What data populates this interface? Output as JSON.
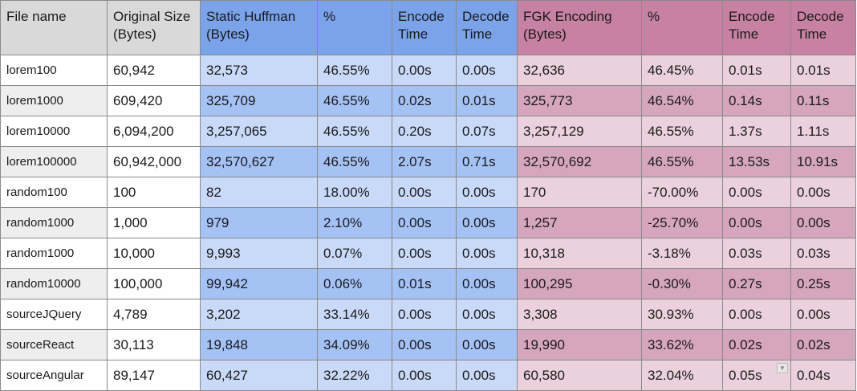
{
  "headers": {
    "file_name": "File name",
    "original_size": "Original Size (Bytes)",
    "static_huffman": "Static Huffman (Bytes)",
    "static_pct": "%",
    "static_encode": "Encode Time",
    "static_decode": "Decode Time",
    "fgk": "FGK Encoding (Bytes)",
    "fgk_pct": "%",
    "fgk_encode": "Encode Time",
    "fgk_decode": "Decode Time"
  },
  "rows": [
    {
      "name": "lorem100",
      "orig": "60,942",
      "sh": "32,573",
      "sh_pct": "46.55%",
      "sh_enc": "0.00s",
      "sh_dec": "0.00s",
      "fgk": "32,636",
      "fgk_pct": "46.45%",
      "fgk_enc": "0.01s",
      "fgk_dec": "0.01s"
    },
    {
      "name": "lorem1000",
      "orig": "609,420",
      "sh": "325,709",
      "sh_pct": "46.55%",
      "sh_enc": "0.02s",
      "sh_dec": "0.01s",
      "fgk": "325,773",
      "fgk_pct": "46.54%",
      "fgk_enc": "0.14s",
      "fgk_dec": "0.11s"
    },
    {
      "name": "lorem10000",
      "orig": "6,094,200",
      "sh": "3,257,065",
      "sh_pct": "46.55%",
      "sh_enc": "0.20s",
      "sh_dec": "0.07s",
      "fgk": "3,257,129",
      "fgk_pct": "46.55%",
      "fgk_enc": "1.37s",
      "fgk_dec": "1.11s"
    },
    {
      "name": "lorem100000",
      "orig": "60,942,000",
      "sh": "32,570,627",
      "sh_pct": "46.55%",
      "sh_enc": "2.07s",
      "sh_dec": "0.71s",
      "fgk": "32,570,692",
      "fgk_pct": "46.55%",
      "fgk_enc": "13.53s",
      "fgk_dec": "10.91s"
    },
    {
      "name": "random100",
      "orig": "100",
      "sh": "82",
      "sh_pct": "18.00%",
      "sh_enc": "0.00s",
      "sh_dec": "0.00s",
      "fgk": "170",
      "fgk_pct": "-70.00%",
      "fgk_enc": "0.00s",
      "fgk_dec": "0.00s"
    },
    {
      "name": "random1000",
      "orig": "1,000",
      "sh": "979",
      "sh_pct": "2.10%",
      "sh_enc": "0.00s",
      "sh_dec": "0.00s",
      "fgk": "1,257",
      "fgk_pct": "-25.70%",
      "fgk_enc": "0.00s",
      "fgk_dec": "0.00s"
    },
    {
      "name": "random1000",
      "orig": "10,000",
      "sh": "9,993",
      "sh_pct": "0.07%",
      "sh_enc": "0.00s",
      "sh_dec": "0.00s",
      "fgk": "10,318",
      "fgk_pct": "-3.18%",
      "fgk_enc": "0.03s",
      "fgk_dec": "0.03s"
    },
    {
      "name": "random10000",
      "orig": "100,000",
      "sh": "99,942",
      "sh_pct": "0.06%",
      "sh_enc": "0.01s",
      "sh_dec": "0.00s",
      "fgk": "100,295",
      "fgk_pct": "-0.30%",
      "fgk_enc": "0.27s",
      "fgk_dec": "0.25s"
    },
    {
      "name": "sourceJQuery",
      "orig": "4,789",
      "sh": "3,202",
      "sh_pct": "33.14%",
      "sh_enc": "0.00s",
      "sh_dec": "0.00s",
      "fgk": "3,308",
      "fgk_pct": "30.93%",
      "fgk_enc": "0.00s",
      "fgk_dec": "0.00s"
    },
    {
      "name": "sourceReact",
      "orig": "30,113",
      "sh": "19,848",
      "sh_pct": "34.09%",
      "sh_enc": "0.00s",
      "sh_dec": "0.00s",
      "fgk": "19,990",
      "fgk_pct": "33.62%",
      "fgk_enc": "0.02s",
      "fgk_dec": "0.02s"
    },
    {
      "name": "sourceAngular",
      "orig": "89,147",
      "sh": "60,427",
      "sh_pct": "32.22%",
      "sh_enc": "0.00s",
      "sh_dec": "0.00s",
      "fgk": "60,580",
      "fgk_pct": "32.04%",
      "fgk_enc": "0.05s",
      "fgk_dec": "0.04s"
    }
  ],
  "colors": {
    "header_gray": "#d9d9d9",
    "header_blue": "#7ba3e9",
    "header_pink": "#c781a2",
    "blue_light": "#c9daf8",
    "blue_dark": "#a4c2f4",
    "pink_light": "#ead1dc",
    "pink_dark": "#d5a6bd"
  },
  "icons": {
    "filter": "dropdown-filter-icon"
  }
}
